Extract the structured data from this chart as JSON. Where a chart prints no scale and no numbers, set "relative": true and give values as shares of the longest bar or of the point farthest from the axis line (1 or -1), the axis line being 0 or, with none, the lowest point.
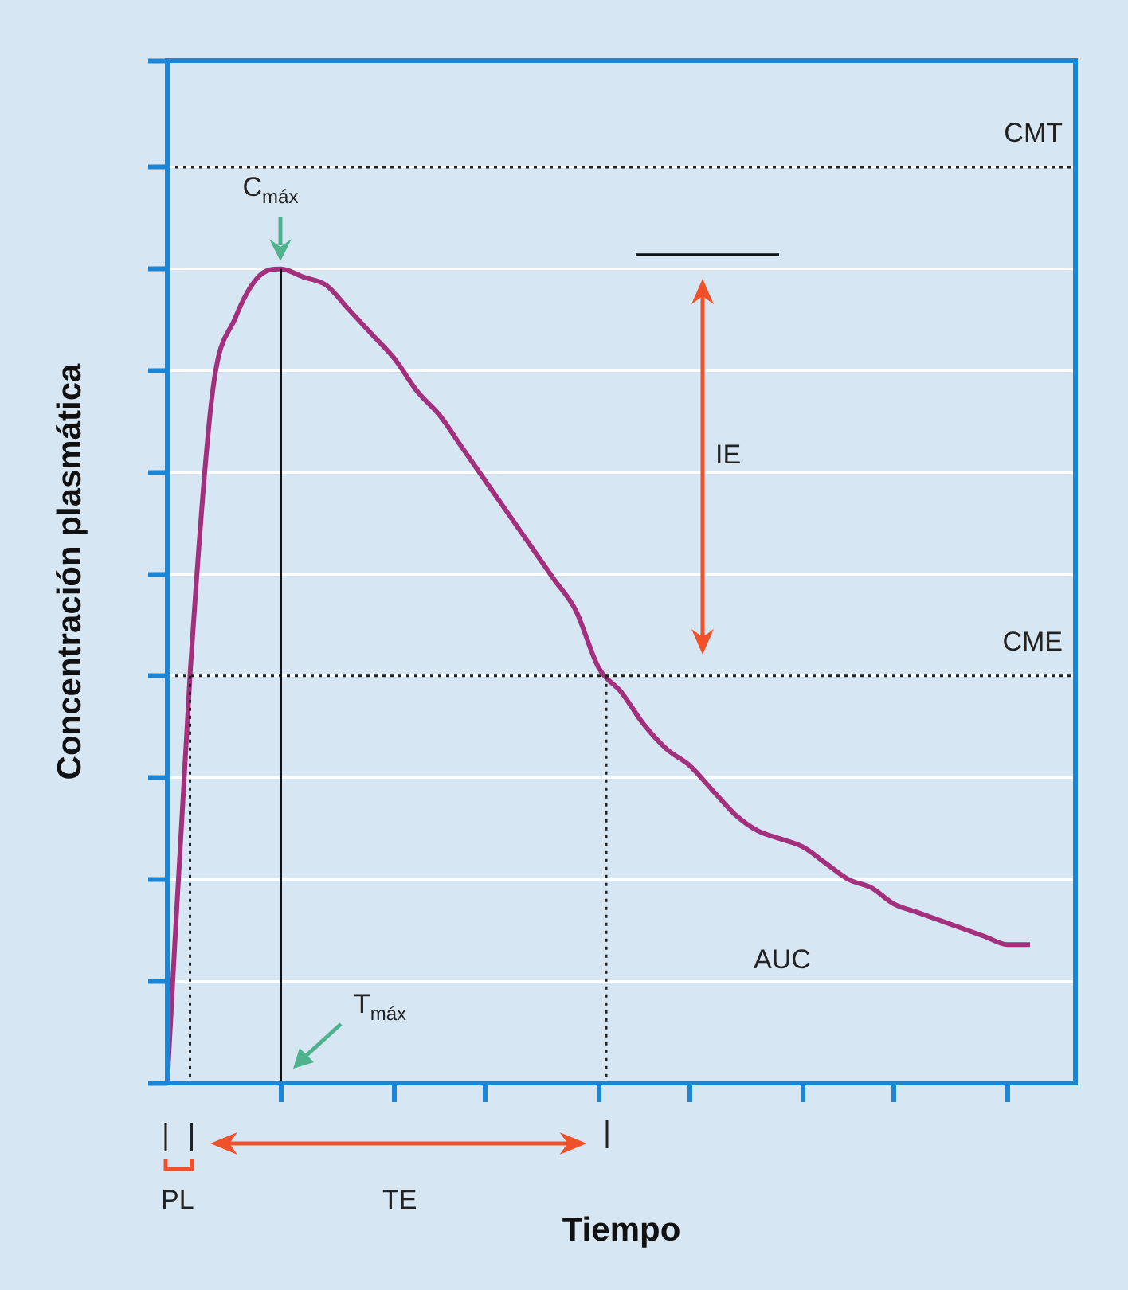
{
  "chart_data": {
    "type": "line",
    "relative": true,
    "xlabel": "Tiempo",
    "ylabel": "Concentración plasmática",
    "categories": [
      null,
      null,
      null,
      null,
      null,
      null,
      null,
      null,
      null,
      null,
      null,
      null,
      null,
      null,
      null,
      null,
      null,
      null,
      null,
      null,
      null,
      null,
      null,
      null,
      null,
      null,
      null,
      null,
      null,
      null,
      null,
      null,
      null,
      null,
      null,
      null,
      null,
      null,
      null,
      null,
      null
    ],
    "series": [
      {
        "color": "#a2307c",
        "values": [
          0,
          0.5,
          0.85,
          0.94,
          0.99,
          1,
          0.99,
          0.98,
          0.95,
          0.92,
          0.89,
          0.85,
          0.82,
          0.78,
          0.74,
          0.7,
          0.66,
          0.62,
          0.58,
          0.51,
          0.48,
          0.44,
          0.41,
          0.39,
          0.36,
          0.33,
          0.31,
          0.3,
          0.29,
          0.27,
          0.25,
          0.24,
          0.22,
          0.21,
          0.2,
          0.19,
          0.18,
          0.17,
          0.17,
          null,
          null
        ]
      }
    ],
    "ref_lines": [
      {
        "axis": "y",
        "value": 1.125,
        "label": "CMT",
        "line_style": "dotted"
      },
      {
        "axis": "y",
        "value": 0.5,
        "label": "CME",
        "line_style": "dotted"
      }
    ],
    "annotations": [
      "C$_{máx}$",
      "T$_{máx}$",
      "IE",
      "TE",
      "PL",
      "AUC"
    ],
    "grid": "y",
    "legend": false,
    "marker": "none",
    "line_style": "solid"
  }
}
